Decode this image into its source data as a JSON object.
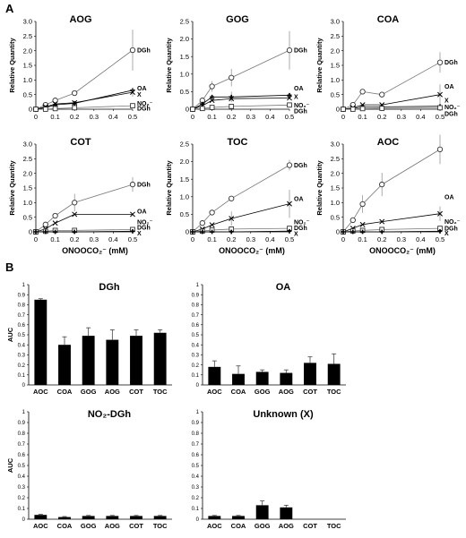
{
  "panel_a_label": "A",
  "panel_b_label": "B",
  "chart_data": [
    {
      "type": "line",
      "title": "AOG",
      "ylabel": "Relative Quantity",
      "xlabel": "",
      "xlim": [
        0,
        0.5
      ],
      "ylim": [
        0,
        3
      ],
      "xticks": [
        "0",
        "0.1",
        "0.2",
        "0.3",
        "0.4",
        "0.5"
      ],
      "yticks": [
        "0",
        "0.5",
        "1.0",
        "1.5",
        "2.0",
        "2.5",
        "3.0"
      ],
      "series": [
        {
          "name": "DGh",
          "marker": "circle",
          "x": [
            0,
            0.05,
            0.1,
            0.2,
            0.5
          ],
          "y": [
            0,
            0.15,
            0.3,
            0.55,
            2.02
          ],
          "err": [
            0,
            0,
            0,
            0,
            0.7
          ]
        },
        {
          "name": "OA",
          "marker": "plus",
          "x": [
            0,
            0.05,
            0.1,
            0.2,
            0.5
          ],
          "y": [
            0,
            0.05,
            0.15,
            0.2,
            0.65
          ],
          "err": [
            0,
            0,
            0,
            0,
            0
          ]
        },
        {
          "name": "X",
          "marker": "cross",
          "x": [
            0,
            0.05,
            0.1,
            0.2,
            0.5
          ],
          "y": [
            0,
            0.08,
            0.18,
            0.22,
            0.58
          ],
          "err": [
            0,
            0,
            0,
            0,
            0.15
          ]
        },
        {
          "name": "NO2-DGh",
          "marker": "square",
          "x": [
            0,
            0.05,
            0.1,
            0.2,
            0.5
          ],
          "y": [
            0,
            0,
            0.02,
            0.05,
            0.12
          ],
          "err": [
            0,
            0,
            0,
            0,
            0
          ]
        }
      ],
      "end_labels": [
        {
          "text": "DGh",
          "y": 2.02
        },
        {
          "text": "OA",
          "y": 0.72
        },
        {
          "text": "X",
          "y": 0.5
        },
        {
          "text": "NO₂⁻",
          "y": 0.2
        },
        {
          "text": "DGh",
          "y": 0.03
        }
      ]
    },
    {
      "type": "line",
      "title": "GOG",
      "ylabel": "Relative Quantity",
      "xlabel": "",
      "xlim": [
        0,
        0.5
      ],
      "ylim": [
        0,
        2.5
      ],
      "xticks": [
        "0",
        "0.1",
        "0.2",
        "0.3",
        "0.4",
        "0.5"
      ],
      "yticks": [
        "0",
        "0.5",
        "1.0",
        "1.5",
        "2.0",
        "2.5"
      ],
      "series": [
        {
          "name": "DGh",
          "marker": "circle",
          "x": [
            0,
            0.05,
            0.1,
            0.2,
            0.5
          ],
          "y": [
            0,
            0.25,
            0.65,
            0.9,
            1.68
          ],
          "err": [
            0,
            0,
            0.15,
            0.25,
            0.55
          ]
        },
        {
          "name": "OA",
          "marker": "plus",
          "x": [
            0,
            0.05,
            0.1,
            0.2,
            0.5
          ],
          "y": [
            0,
            0.15,
            0.35,
            0.35,
            0.4
          ],
          "err": [
            0,
            0,
            0,
            0.15,
            0
          ]
        },
        {
          "name": "X",
          "marker": "cross",
          "x": [
            0,
            0.05,
            0.1,
            0.2,
            0.5
          ],
          "y": [
            0,
            0.1,
            0.25,
            0.3,
            0.32
          ],
          "err": [
            0,
            0,
            0,
            0,
            0
          ]
        },
        {
          "name": "NO2-DGh",
          "marker": "square",
          "x": [
            0,
            0.05,
            0.1,
            0.2,
            0.5
          ],
          "y": [
            0,
            0.02,
            0.05,
            0.08,
            0.12
          ],
          "err": [
            0,
            0,
            0,
            0,
            0
          ]
        }
      ],
      "end_labels": [
        {
          "text": "DGh",
          "y": 1.68
        },
        {
          "text": "OA",
          "y": 0.6
        },
        {
          "text": "X",
          "y": 0.36
        },
        {
          "text": "NO₂⁻",
          "y": 0.12
        },
        {
          "text": "DGh",
          "y": -0.05
        }
      ]
    },
    {
      "type": "line",
      "title": "COA",
      "ylabel": "Relative Quantity",
      "xlabel": "",
      "xlim": [
        0,
        0.5
      ],
      "ylim": [
        0,
        3
      ],
      "xticks": [
        "0",
        "0.1",
        "0.2",
        "0.3",
        "0.4",
        "0.5"
      ],
      "yticks": [
        "0",
        "0.5",
        "1.0",
        "1.5",
        "2.0",
        "2.5",
        "3.0"
      ],
      "series": [
        {
          "name": "DGh",
          "marker": "circle",
          "x": [
            0,
            0.05,
            0.1,
            0.2,
            0.5
          ],
          "y": [
            0,
            0.15,
            0.6,
            0.5,
            1.6
          ],
          "err": [
            0,
            0,
            0,
            0,
            0.35
          ]
        },
        {
          "name": "OA",
          "marker": "cross",
          "x": [
            0,
            0.05,
            0.1,
            0.2,
            0.5
          ],
          "y": [
            0,
            0.05,
            0.15,
            0.15,
            0.5
          ],
          "err": [
            0,
            0,
            0,
            0,
            0.35
          ]
        },
        {
          "name": "X",
          "marker": "plus",
          "x": [
            0,
            0.05,
            0.1,
            0.2,
            0.5
          ],
          "y": [
            0,
            0.02,
            0.08,
            0.08,
            0.1
          ],
          "err": [
            0,
            0,
            0,
            0,
            0
          ]
        },
        {
          "name": "NO2-DGh",
          "marker": "square",
          "x": [
            0,
            0.05,
            0.1,
            0.2,
            0.5
          ],
          "y": [
            0,
            0,
            0.02,
            0.03,
            0.05
          ],
          "err": [
            0,
            0,
            0,
            0,
            0
          ]
        }
      ],
      "end_labels": [
        {
          "text": "DGh",
          "y": 1.6
        },
        {
          "text": "OA",
          "y": 0.78
        },
        {
          "text": "X",
          "y": 0.3
        },
        {
          "text": "NO₂⁻",
          "y": 0.08
        },
        {
          "text": "DGh",
          "y": -0.15
        }
      ]
    },
    {
      "type": "line",
      "title": "COT",
      "ylabel": "Relative Quantity",
      "xlabel": "ONOOCO₂⁻ (mM)",
      "xlim": [
        0,
        0.5
      ],
      "ylim": [
        0,
        3
      ],
      "xticks": [
        "0",
        "0.1",
        "0.2",
        "0.3",
        "0.4",
        "0.5"
      ],
      "yticks": [
        "0",
        "0.5",
        "1.0",
        "1.5",
        "2.0",
        "2.5",
        "3.0"
      ],
      "series": [
        {
          "name": "DGh",
          "marker": "circle",
          "x": [
            0,
            0.05,
            0.1,
            0.2,
            0.5
          ],
          "y": [
            0,
            0.25,
            0.55,
            1.0,
            1.62
          ],
          "err": [
            0,
            0,
            0,
            0.3,
            0.25
          ]
        },
        {
          "name": "OA",
          "marker": "cross",
          "x": [
            0,
            0.05,
            0.1,
            0.2,
            0.5
          ],
          "y": [
            0,
            0.1,
            0.3,
            0.6,
            0.6
          ],
          "err": [
            0,
            0,
            0,
            0,
            0
          ]
        },
        {
          "name": "NO2-DGh",
          "marker": "square",
          "x": [
            0,
            0.05,
            0.1,
            0.2,
            0.5
          ],
          "y": [
            0,
            0.02,
            0.05,
            0.05,
            0.08
          ],
          "err": [
            0,
            0,
            0,
            0,
            0
          ]
        },
        {
          "name": "X",
          "marker": "plus",
          "x": [
            0,
            0.05,
            0.1,
            0.2,
            0.5
          ],
          "y": [
            0,
            0,
            0,
            0,
            0.02
          ],
          "err": [
            0,
            0,
            0,
            0,
            0
          ]
        }
      ],
      "end_labels": [
        {
          "text": "DGh",
          "y": 1.62
        },
        {
          "text": "OA",
          "y": 0.7
        },
        {
          "text": "NO₂⁻",
          "y": 0.33
        },
        {
          "text": "DGh",
          "y": 0.15
        },
        {
          "text": "X",
          "y": -0.05
        }
      ]
    },
    {
      "type": "line",
      "title": "TOC",
      "ylabel": "Relative Quantity",
      "xlabel": "ONOOCO₂⁻ (mM)",
      "xlim": [
        0,
        0.5
      ],
      "ylim": [
        0,
        2.5
      ],
      "xticks": [
        "0",
        "0.1",
        "0.2",
        "0.3",
        "0.4",
        "0.5"
      ],
      "yticks": [
        "0",
        "0.5",
        "1.0",
        "1.5",
        "2.0",
        "2.5"
      ],
      "series": [
        {
          "name": "DGh",
          "marker": "circle",
          "x": [
            0,
            0.05,
            0.1,
            0.2,
            0.5
          ],
          "y": [
            0,
            0.25,
            0.55,
            0.95,
            1.9
          ],
          "err": [
            0,
            0,
            0,
            0,
            0.15
          ]
        },
        {
          "name": "OA",
          "marker": "cross",
          "x": [
            0,
            0.05,
            0.1,
            0.2,
            0.5
          ],
          "y": [
            0,
            0.08,
            0.2,
            0.38,
            0.8
          ],
          "err": [
            0,
            0,
            0,
            0.2,
            0.4
          ]
        },
        {
          "name": "NO2-DGh",
          "marker": "square",
          "x": [
            0,
            0.05,
            0.1,
            0.2,
            0.5
          ],
          "y": [
            0,
            0.02,
            0.05,
            0.08,
            0.1
          ],
          "err": [
            0,
            0,
            0,
            0,
            0
          ]
        },
        {
          "name": "X",
          "marker": "plus",
          "x": [
            0,
            0.05,
            0.1,
            0.2,
            0.5
          ],
          "y": [
            0,
            0,
            0,
            0,
            0.02
          ],
          "err": [
            0,
            0,
            0,
            0,
            0
          ]
        }
      ],
      "end_labels": [
        {
          "text": "DGh",
          "y": 1.9
        },
        {
          "text": "OA",
          "y": 0.95
        },
        {
          "text": "NO₂⁻",
          "y": 0.28
        },
        {
          "text": "DGh",
          "y": 0.12
        },
        {
          "text": "X",
          "y": -0.05
        }
      ]
    },
    {
      "type": "line",
      "title": "AOC",
      "ylabel": "Relative Quantity",
      "xlabel": "ONOOCO₂⁻ (mM)",
      "xlim": [
        0,
        0.5
      ],
      "ylim": [
        0,
        3
      ],
      "xticks": [
        "0",
        "0.1",
        "0.2",
        "0.3",
        "0.4",
        "0.5"
      ],
      "yticks": [
        "0",
        "0.5",
        "1.0",
        "1.5",
        "2.0",
        "2.5",
        "3.0"
      ],
      "series": [
        {
          "name": "DGh",
          "marker": "circle",
          "x": [
            0,
            0.05,
            0.1,
            0.2,
            0.5
          ],
          "y": [
            0,
            0.4,
            0.95,
            1.62,
            2.82
          ],
          "err": [
            0,
            0,
            0.3,
            0.4,
            0.5
          ]
        },
        {
          "name": "OA",
          "marker": "cross",
          "x": [
            0,
            0.05,
            0.1,
            0.2,
            0.5
          ],
          "y": [
            0,
            0.12,
            0.25,
            0.35,
            0.62
          ],
          "err": [
            0,
            0,
            0,
            0,
            0.25
          ]
        },
        {
          "name": "NO2-DGh",
          "marker": "square",
          "x": [
            0,
            0.05,
            0.1,
            0.2,
            0.5
          ],
          "y": [
            0,
            0.03,
            0.05,
            0.08,
            0.12
          ],
          "err": [
            0,
            0,
            0,
            0,
            0
          ]
        },
        {
          "name": "X",
          "marker": "plus",
          "x": [
            0,
            0.05,
            0.1,
            0.2,
            0.5
          ],
          "y": [
            0,
            0,
            0,
            0,
            0.02
          ],
          "err": [
            0,
            0,
            0,
            0,
            0
          ]
        }
      ],
      "end_labels": [
        {
          "text": "OA",
          "y": 1.2
        },
        {
          "text": "NO₂⁻",
          "y": 0.35
        },
        {
          "text": "DGh",
          "y": 0.12
        },
        {
          "text": "X",
          "y": -0.05
        }
      ]
    },
    {
      "type": "bar",
      "title": "DGh",
      "ylabel": "AUC",
      "ylim": [
        0,
        1
      ],
      "yticks": [
        "0",
        "0.1",
        "0.2",
        "0.3",
        "0.4",
        "0.5",
        "0.6",
        "0.7",
        "0.8",
        "0.9",
        "1"
      ],
      "categories": [
        "AOC",
        "COA",
        "GOG",
        "AOG",
        "COT",
        "TOC"
      ],
      "values": [
        0.85,
        0.4,
        0.49,
        0.45,
        0.49,
        0.52
      ],
      "err": [
        0.01,
        0.08,
        0.08,
        0.1,
        0.06,
        0.03
      ]
    },
    {
      "type": "bar",
      "title": "OA",
      "ylabel": "",
      "ylim": [
        0,
        1
      ],
      "yticks": [
        "0",
        "0.1",
        "0.2",
        "0.3",
        "0.4",
        "0.5",
        "0.6",
        "0.7",
        "0.8",
        "0.9",
        "1"
      ],
      "categories": [
        "AOC",
        "COA",
        "GOG",
        "AOG",
        "COT",
        "TOC"
      ],
      "values": [
        0.18,
        0.11,
        0.13,
        0.12,
        0.22,
        0.21
      ],
      "err": [
        0.06,
        0.08,
        0.02,
        0.03,
        0.06,
        0.1
      ]
    },
    {
      "type": "bar",
      "title": "NO₂-DGh",
      "ylabel": "AUC",
      "ylim": [
        0,
        1
      ],
      "yticks": [
        "0",
        "0.1",
        "0.2",
        "0.3",
        "0.4",
        "0.5",
        "0.6",
        "0.7",
        "0.8",
        "0.9",
        "1"
      ],
      "categories": [
        "AOC",
        "COA",
        "GOG",
        "AOG",
        "COT",
        "TOC"
      ],
      "values": [
        0.04,
        0.02,
        0.03,
        0.03,
        0.03,
        0.03
      ],
      "err": [
        0.005,
        0.005,
        0.005,
        0.005,
        0.005,
        0.005
      ]
    },
    {
      "type": "bar",
      "title": "Unknown (X)",
      "ylabel": "",
      "ylim": [
        0,
        1
      ],
      "yticks": [
        "0",
        "0.1",
        "0.2",
        "0.3",
        "0.4",
        "0.5",
        "0.6",
        "0.7",
        "0.8",
        "0.9",
        "1"
      ],
      "categories": [
        "AOC",
        "COA",
        "GOG",
        "AOG",
        "COT",
        "TOC"
      ],
      "values": [
        0.03,
        0.03,
        0.13,
        0.11,
        0,
        0
      ],
      "err": [
        0.005,
        0.005,
        0.04,
        0.02,
        0,
        0
      ]
    }
  ]
}
